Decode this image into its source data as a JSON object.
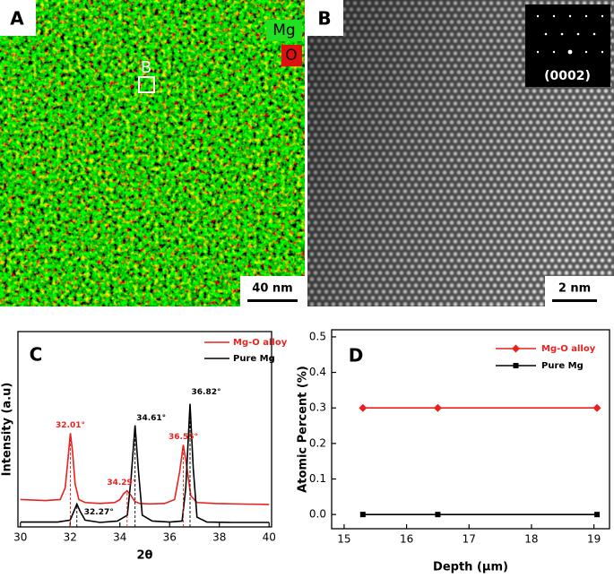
{
  "image_panels": [
    {
      "label": "A",
      "legend": [
        "Mg",
        "O"
      ],
      "region_label": "B",
      "scale_bar": "40 nm"
    },
    {
      "label": "B",
      "inset_label": "(0002)",
      "scale_bar": "2 nm"
    }
  ],
  "chart_data": [
    {
      "type": "line",
      "panel_label": "C",
      "x_label": "2θ",
      "y_label": "Intensity (a.u)",
      "xlim": [
        29.9,
        40.1
      ],
      "xticks": [
        30,
        32,
        34,
        36,
        38,
        40
      ],
      "ylim": [
        0,
        100
      ],
      "legend": "upper right",
      "series": [
        {
          "name": "Mg-O alloy",
          "color": "#e8221e",
          "x": [
            30,
            31,
            31.6,
            31.8,
            31.9,
            32.01,
            32.1,
            32.2,
            32.35,
            32.6,
            33.2,
            33.8,
            34.0,
            34.15,
            34.29,
            34.45,
            34.6,
            34.8,
            35.2,
            35.8,
            36.2,
            36.4,
            36.55,
            36.7,
            36.85,
            37.1,
            37.8,
            39,
            40
          ],
          "values": [
            14,
            13.5,
            14,
            20,
            33,
            48,
            38,
            22,
            14,
            12.5,
            12,
            12.5,
            14,
            17,
            18.5,
            16,
            13,
            12,
            11.8,
            12,
            14,
            28,
            42,
            30,
            16,
            12.5,
            12,
            11.7,
            11.5
          ]
        },
        {
          "name": "Pure Mg",
          "color": "#000000",
          "x": [
            30,
            31.5,
            32.0,
            32.15,
            32.27,
            32.4,
            32.6,
            33.2,
            33.9,
            34.3,
            34.45,
            34.61,
            34.75,
            34.9,
            35.3,
            36.0,
            36.5,
            36.65,
            36.82,
            36.95,
            37.1,
            37.5,
            38.5,
            40
          ],
          "values": [
            2.5,
            2.5,
            3.5,
            8,
            11.7,
            8,
            3.5,
            2.3,
            3,
            6,
            25,
            52,
            28,
            6,
            3,
            2.5,
            3,
            20,
            63,
            30,
            5,
            2.5,
            2.3,
            2.3
          ]
        }
      ],
      "peak_labels": [
        {
          "value": 32.01,
          "label": "32.01°",
          "series": 0
        },
        {
          "value": 34.29,
          "label": "34.29°",
          "series": 0
        },
        {
          "value": 36.55,
          "label": "36.55°",
          "series": 0
        },
        {
          "value": 32.27,
          "label": "32.27°",
          "series": 1
        },
        {
          "value": 34.61,
          "label": "34.61°",
          "series": 1
        },
        {
          "value": 36.82,
          "label": "36.82°",
          "series": 1
        }
      ]
    },
    {
      "type": "line",
      "panel_label": "D",
      "x_label": "Depth (μm)",
      "y_label": "Atomic Percent (%)",
      "x": [
        15.3,
        16.5,
        19.05
      ],
      "xlim": [
        14.8,
        19.25
      ],
      "xticks": [
        15,
        16,
        17,
        18,
        19
      ],
      "ylim": [
        -0.04,
        0.52
      ],
      "yticks": [
        {
          "value": 0,
          "label": "0.0"
        },
        0.1,
        0.2,
        0.3,
        0.4,
        0.5
      ],
      "legend": "upper right",
      "series": [
        {
          "name": "Mg-O alloy",
          "color": "#e8221e",
          "marker": "diamond",
          "values": [
            0.3,
            0.3,
            0.3
          ]
        },
        {
          "name": "Pure Mg",
          "color": "#000000",
          "marker": "square",
          "values": [
            0.0,
            0.0,
            0.0
          ]
        }
      ]
    }
  ]
}
